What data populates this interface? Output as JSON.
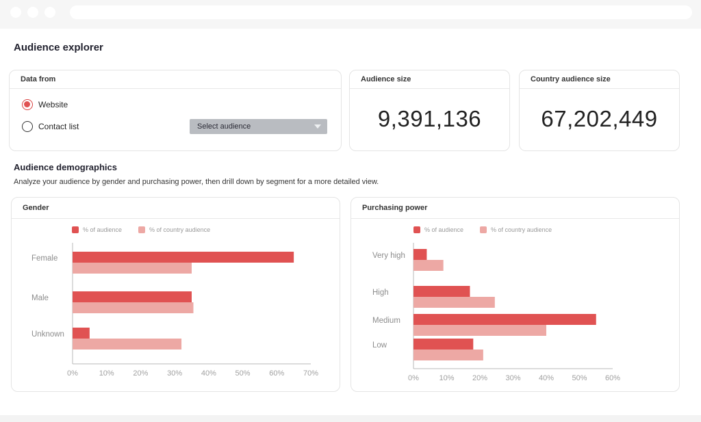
{
  "app": {
    "title": "Audience explorer"
  },
  "data_from": {
    "header": "Data from",
    "options": [
      {
        "label": "Website",
        "checked": true
      },
      {
        "label": "Contact list",
        "checked": false
      }
    ],
    "select_label": "Select audience"
  },
  "audience_size": {
    "header": "Audience size",
    "value": "9,391,136"
  },
  "country_audience_size": {
    "header": "Country audience size",
    "value": "67,202,449"
  },
  "demographics": {
    "title": "Audience demographics",
    "description": "Analyze your audience by gender and purchasing power, then drill down by segment for a more detailed view."
  },
  "colors": {
    "primary": "#e05252",
    "secondary": "#eda8a4",
    "axis": "#b8b8b8",
    "tick_text": "#a0a0a0",
    "category_text": "#8c8c8c"
  },
  "gender": {
    "header": "Gender",
    "legend": [
      "% of audience",
      "% of country audience"
    ]
  },
  "purchasing": {
    "header": "Purchasing power",
    "legend": [
      "% of audience",
      "% of country audience"
    ]
  },
  "chart_data": [
    {
      "type": "bar",
      "orientation": "horizontal",
      "title": "Gender",
      "categories": [
        "Female",
        "Male",
        "Unknown"
      ],
      "series": [
        {
          "name": "% of audience",
          "values": [
            65,
            35,
            5
          ]
        },
        {
          "name": "% of country audience",
          "values": [
            35,
            35.5,
            32
          ]
        }
      ],
      "xlim": [
        0,
        70
      ],
      "xticks": [
        "0%",
        "10%",
        "20%",
        "30%",
        "40%",
        "50%",
        "60%",
        "70%"
      ],
      "legend_position": "top-left"
    },
    {
      "type": "bar",
      "orientation": "horizontal",
      "title": "Purchasing power",
      "categories": [
        "Very high",
        "High",
        "Medium",
        "Low"
      ],
      "series": [
        {
          "name": "% of audience",
          "values": [
            4,
            17,
            55,
            18
          ]
        },
        {
          "name": "% of country audience",
          "values": [
            9,
            24.5,
            40,
            21
          ]
        }
      ],
      "xlim": [
        0,
        60
      ],
      "xticks": [
        "0%",
        "10%",
        "20%",
        "30%",
        "40%",
        "50%",
        "60%"
      ],
      "legend_position": "top-left"
    }
  ]
}
